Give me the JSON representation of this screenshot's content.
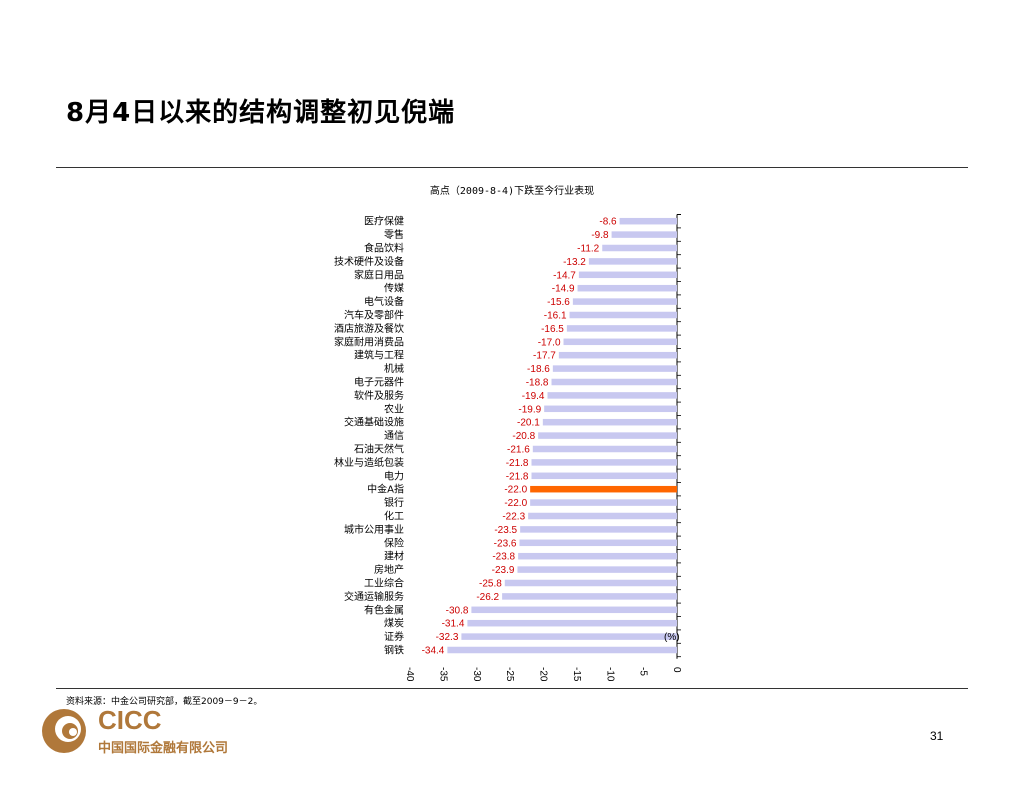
{
  "slide": {
    "title": "8月4日以来的结构调整初见倪端",
    "source": "资料来源：中金公司研究部，截至2009－9－2。",
    "page_number": "31"
  },
  "logo": {
    "text": "CICC",
    "subtitle": "中国国际金融有限公司",
    "color": "#b0783a"
  },
  "chart_data": {
    "type": "bar",
    "orientation": "horizontal",
    "title": "高点（2009-8-4)下跌至今行业表现",
    "unit_label": "(%)",
    "categories": [
      "医疗保健",
      "零售",
      "食品饮料",
      "技术硬件及设备",
      "家庭日用品",
      "传媒",
      "电气设备",
      "汽车及零部件",
      "酒店旅游及餐饮",
      "家庭耐用消费品",
      "建筑与工程",
      "机械",
      "电子元器件",
      "软件及服务",
      "农业",
      "交通基础设施",
      "通信",
      "石油天然气",
      "林业与造纸包装",
      "电力",
      "中金A指",
      "银行",
      "化工",
      "城市公用事业",
      "保险",
      "建材",
      "房地产",
      "工业综合",
      "交通运输服务",
      "有色金属",
      "煤炭",
      "证券",
      "钢铁"
    ],
    "values": [
      -8.6,
      -9.8,
      -11.2,
      -13.2,
      -14.7,
      -14.9,
      -15.6,
      -16.1,
      -16.5,
      -17.0,
      -17.7,
      -18.6,
      -18.8,
      -19.4,
      -19.9,
      -20.1,
      -20.8,
      -21.6,
      -21.8,
      -21.8,
      -22.0,
      -22.0,
      -22.3,
      -23.5,
      -23.6,
      -23.8,
      -23.9,
      -25.8,
      -26.2,
      -30.8,
      -31.4,
      -32.3,
      -34.4
    ],
    "value_labels": [
      "-8.6",
      "-9.8",
      "-11.2",
      "-13.2",
      "-14.7",
      "-14.9",
      "-15.6",
      "-16.1",
      "-16.5",
      "-17.0",
      "-17.7",
      "-18.6",
      "-18.8",
      "-19.4",
      "-19.9",
      "-20.1",
      "-20.8",
      "-21.6",
      "-21.8",
      "-21.8",
      "-22.0",
      "-22.0",
      "-22.3",
      "-23.5",
      "-23.6",
      "-23.8",
      "-23.9",
      "-25.8",
      "-26.2",
      "-30.8",
      "-31.4",
      "-32.3",
      "-34.4"
    ],
    "highlight_index": 20,
    "bar_color": "#c8c8f0",
    "highlight_color": "#ff6600",
    "label_color": "#cc0000",
    "xlim": [
      -40,
      0
    ],
    "ticks": [
      -40,
      -35,
      -30,
      -25,
      -20,
      -15,
      -10,
      -5,
      0
    ],
    "grid": false
  }
}
